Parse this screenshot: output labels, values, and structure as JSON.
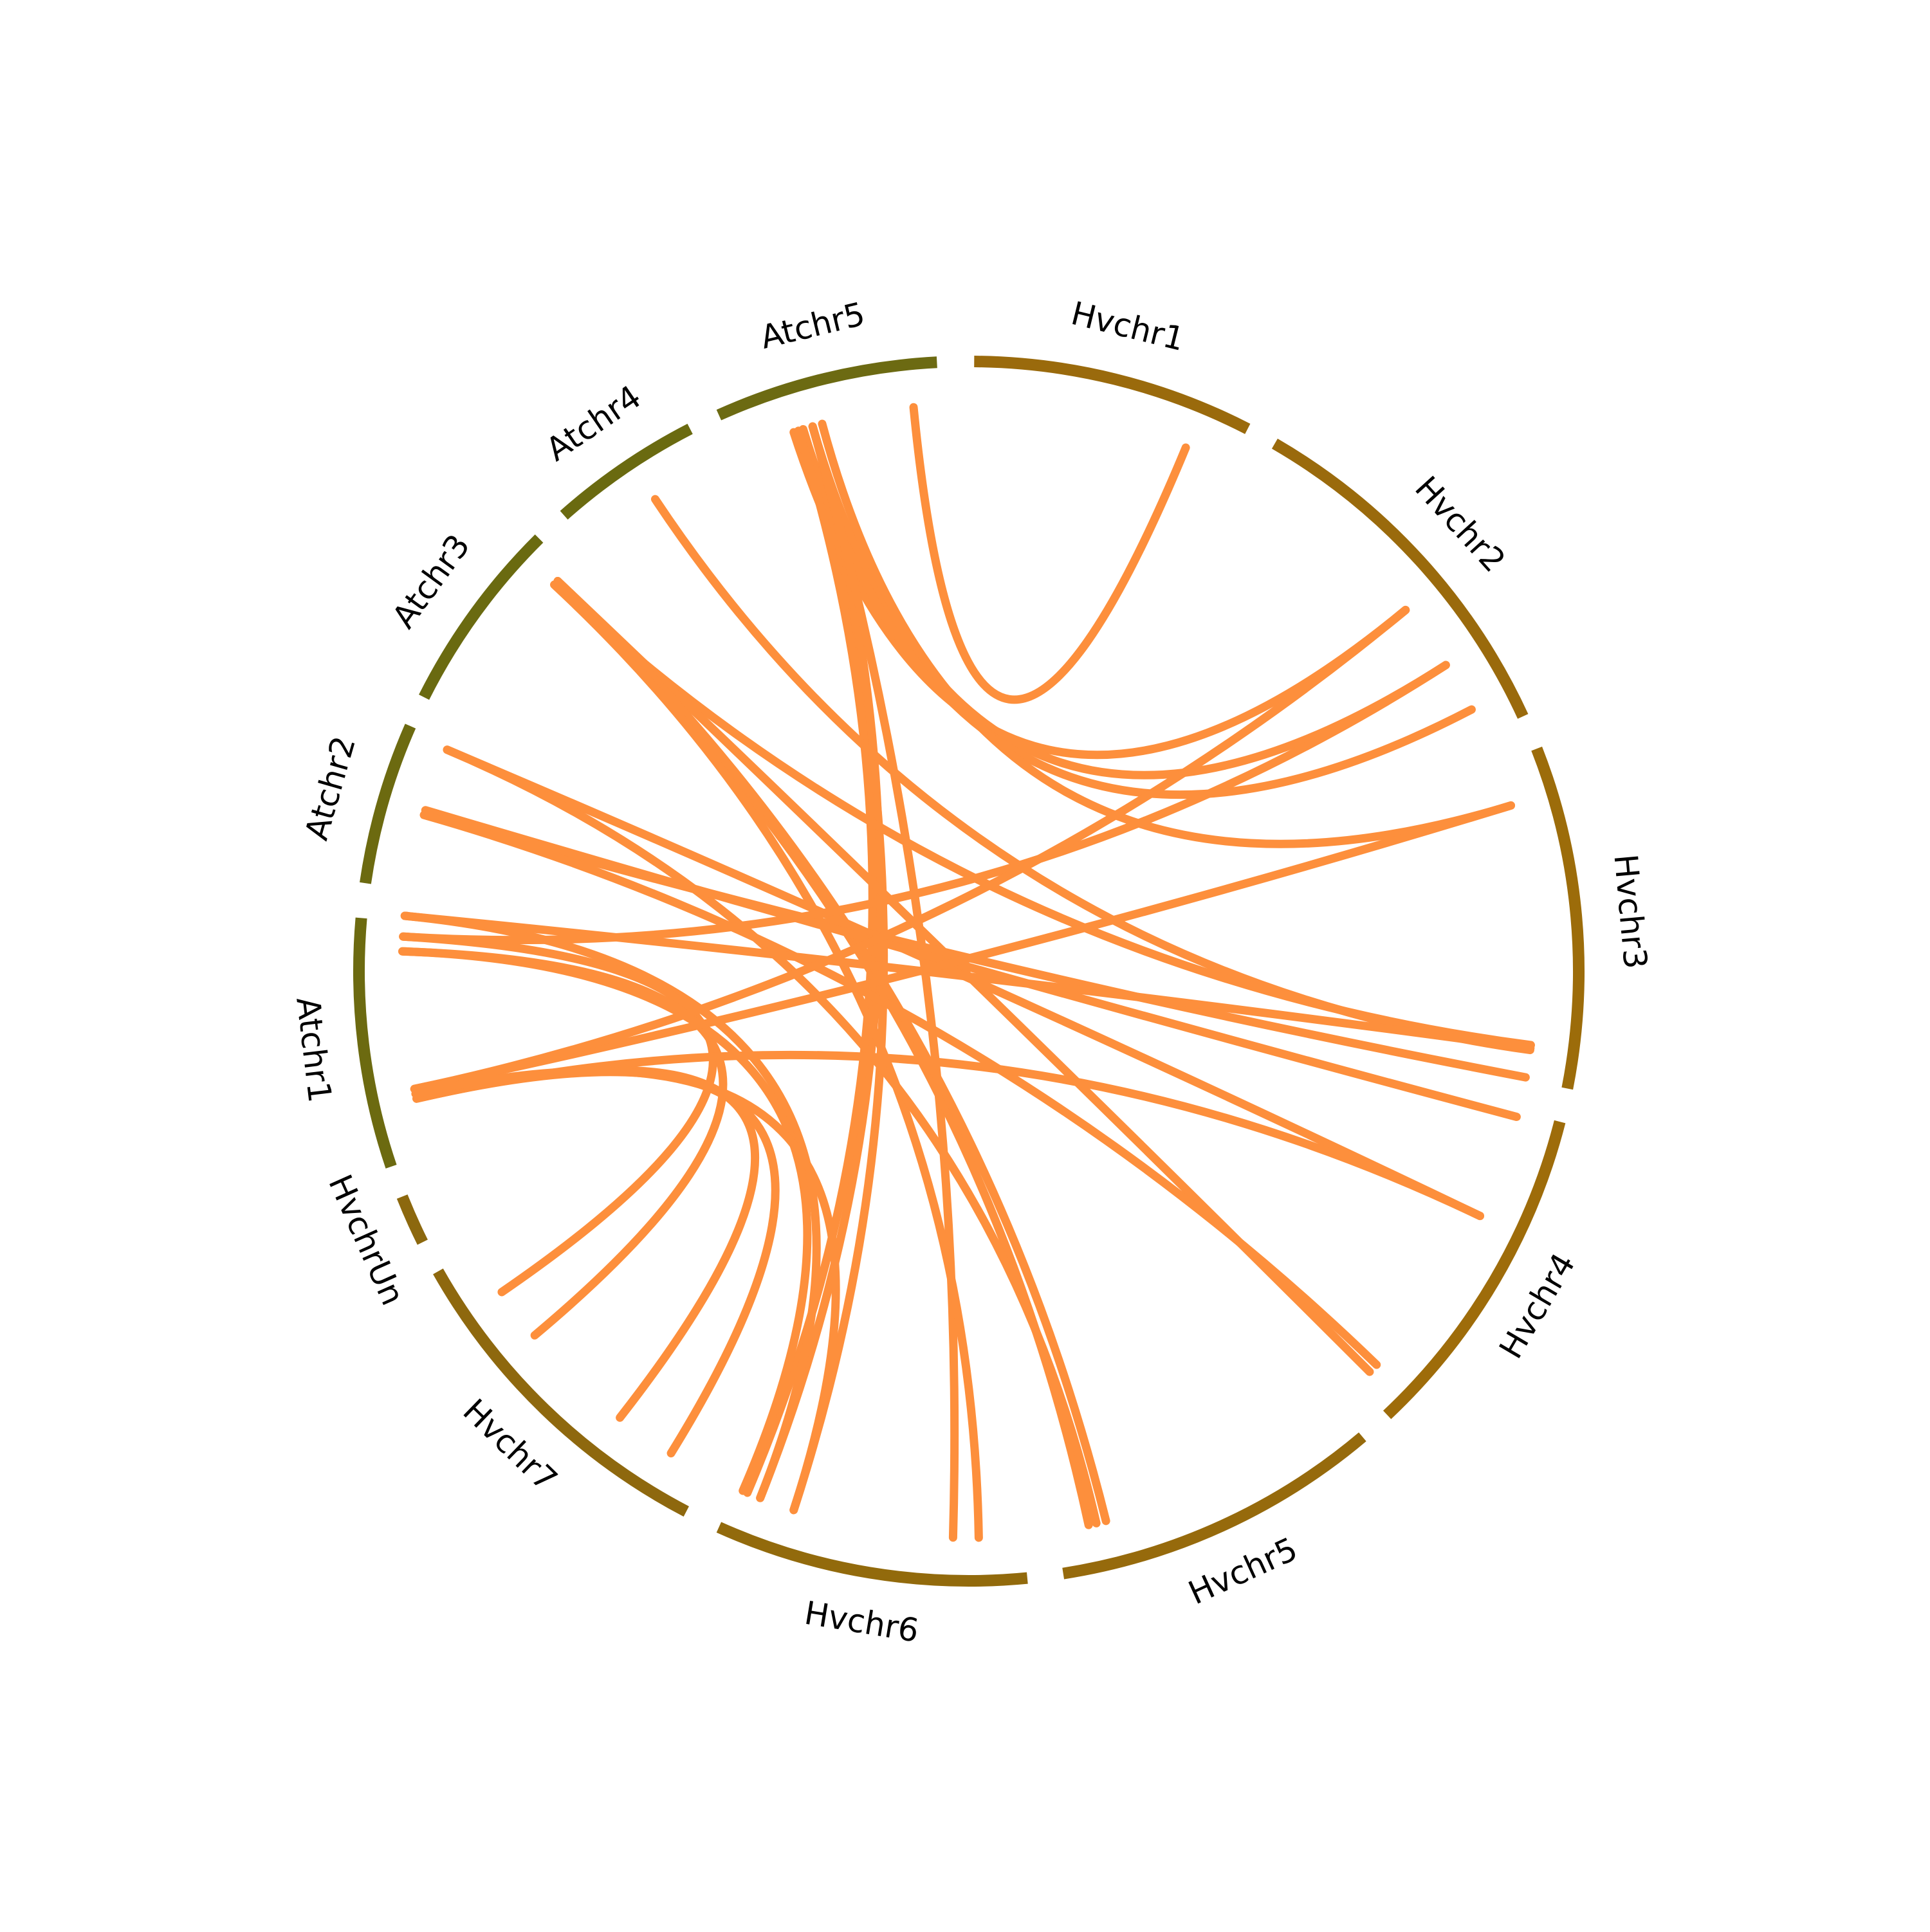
{
  "chromosomes": [
    "Hvchr1",
    "Hvchr2",
    "Hvchr3",
    "Hvchr4",
    "Hvchr5",
    "Hvchr6",
    "Hvchr7",
    "HvchrUn",
    "Atchr1",
    "Atchr2",
    "Atchr3",
    "Atchr4",
    "Atchr5"
  ]
}
